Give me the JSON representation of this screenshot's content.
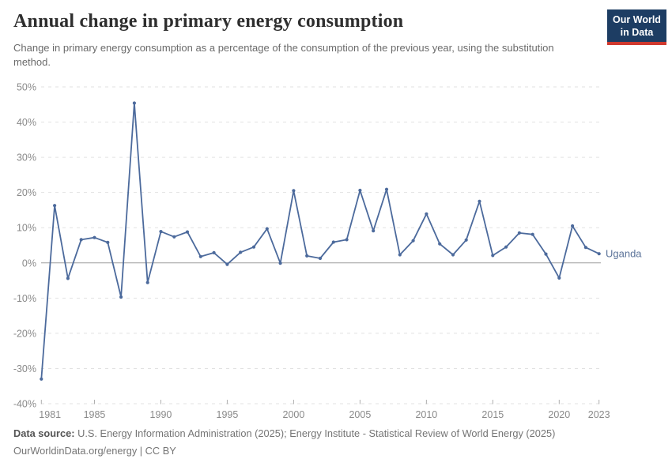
{
  "header": {
    "title": "Annual change in primary energy consumption",
    "subtitle": "Change in primary energy consumption as a percentage of the consumption of the previous year, using the substitution method.",
    "logo": {
      "line1": "Our World",
      "line2": "in Data"
    }
  },
  "chart_data": {
    "type": "line",
    "title": "Annual change in primary energy consumption",
    "xlabel": "",
    "ylabel": "",
    "unit": "%",
    "ylim": [
      -40,
      50
    ],
    "ytick_step": 10,
    "grid": "horizontal-dashed",
    "legend_position": "end-of-line-label",
    "x": [
      1981,
      1982,
      1983,
      1984,
      1985,
      1986,
      1987,
      1988,
      1989,
      1990,
      1991,
      1992,
      1993,
      1994,
      1995,
      1996,
      1997,
      1998,
      1999,
      2000,
      2001,
      2002,
      2003,
      2004,
      2005,
      2006,
      2007,
      2008,
      2009,
      2010,
      2011,
      2012,
      2013,
      2014,
      2015,
      2016,
      2017,
      2018,
      2019,
      2020,
      2021,
      2022,
      2023
    ],
    "xticks": [
      1981,
      1985,
      1990,
      1995,
      2000,
      2005,
      2010,
      2015,
      2020,
      2023
    ],
    "series": [
      {
        "name": "Uganda",
        "color": "#4c6a9c",
        "label_color": "#5b7399",
        "values": [
          -33,
          16.3,
          -4.4,
          6.6,
          7.2,
          5.8,
          -9.7,
          45.4,
          -5.6,
          8.9,
          7.4,
          8.8,
          1.8,
          2.9,
          -0.4,
          3,
          4.5,
          9.7,
          -0.1,
          20.5,
          2,
          1.3,
          5.9,
          6.6,
          20.6,
          9.1,
          20.9,
          2.3,
          6.3,
          13.9,
          5.4,
          2.3,
          6.5,
          17.5,
          2.1,
          4.5,
          8.5,
          8.1,
          2.5,
          -4.3,
          10.5,
          4.4,
          2.6
        ]
      }
    ]
  },
  "footer": {
    "datasource_label": "Data source:",
    "datasource_text": " U.S. Energy Information Administration (2025); Energy Institute - Statistical Review of World Energy (2025)",
    "citation": "OurWorldinData.org/energy | CC BY"
  },
  "colors": {
    "line": "#4c6a9c",
    "logo_bg": "#1d3d63",
    "logo_red": "#d0392e",
    "grid": "#e2e2e2",
    "zero_line": "#9e9e9e",
    "tick_mark": "#aeaeae",
    "tick_text": "#8a8a8a"
  }
}
